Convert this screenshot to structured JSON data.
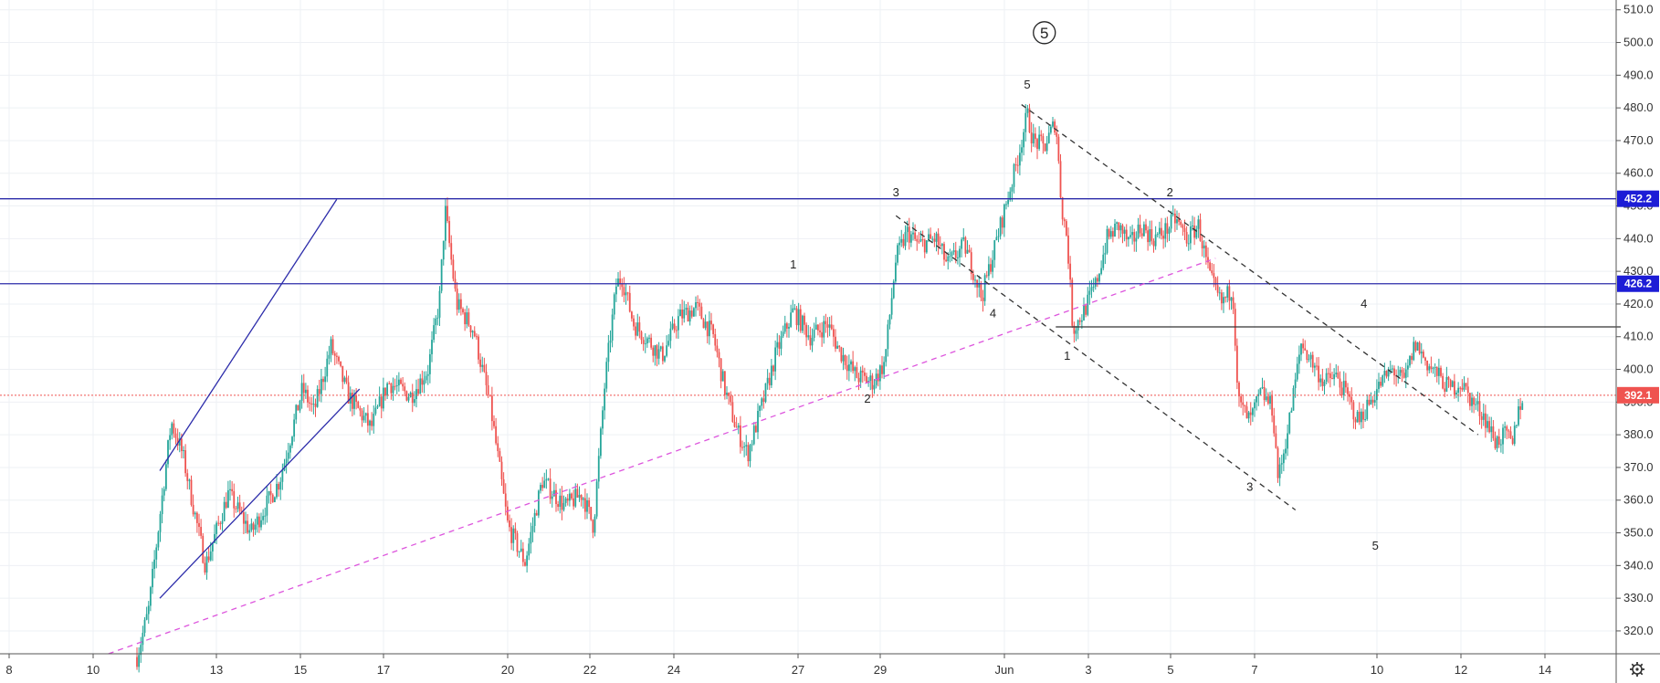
{
  "chart_data": {
    "type": "candlestick",
    "title": "",
    "xlabel": "",
    "ylabel": "",
    "ylim": [
      313,
      513
    ],
    "grid": true,
    "x_tick_labels": [
      "8",
      "10",
      "13",
      "15",
      "17",
      "20",
      "22",
      "24",
      "27",
      "29",
      "Jun",
      "3",
      "5",
      "7",
      "10",
      "12",
      "14"
    ],
    "y_tick_labels": [
      "320.0",
      "330.0",
      "340.0",
      "350.0",
      "360.0",
      "370.0",
      "380.0",
      "390.0",
      "400.0",
      "410.0",
      "420.0",
      "430.0",
      "440.0",
      "450.0",
      "460.0",
      "470.0",
      "480.0",
      "490.0",
      "500.0",
      "510.0"
    ],
    "y_ticks": [
      320,
      330,
      340,
      350,
      360,
      370,
      380,
      390,
      400,
      410,
      420,
      430,
      440,
      450,
      460,
      470,
      480,
      490,
      500,
      510
    ],
    "price_path": [
      [
        0,
        312
      ],
      [
        2,
        326
      ],
      [
        6,
        384
      ],
      [
        8,
        374
      ],
      [
        12,
        340
      ],
      [
        16,
        362
      ],
      [
        20,
        350
      ],
      [
        25,
        366
      ],
      [
        29,
        394
      ],
      [
        31,
        387
      ],
      [
        34,
        407
      ],
      [
        37,
        392
      ],
      [
        41,
        382
      ],
      [
        44,
        396
      ],
      [
        48,
        392
      ],
      [
        51,
        400
      ],
      [
        53,
        421
      ],
      [
        54,
        449
      ],
      [
        56,
        420
      ],
      [
        59,
        412
      ],
      [
        62,
        388
      ],
      [
        65,
        352
      ],
      [
        68,
        341
      ],
      [
        71,
        366
      ],
      [
        75,
        358
      ],
      [
        78,
        362
      ],
      [
        80,
        352
      ],
      [
        82,
        396
      ],
      [
        84,
        426
      ],
      [
        85,
        428
      ],
      [
        87,
        414
      ],
      [
        89,
        410
      ],
      [
        92,
        404
      ],
      [
        95,
        416
      ],
      [
        98,
        419
      ],
      [
        101,
        410
      ],
      [
        103,
        394
      ],
      [
        105,
        382
      ],
      [
        107,
        374
      ],
      [
        110,
        392
      ],
      [
        112,
        405
      ],
      [
        115,
        418
      ],
      [
        118,
        410
      ],
      [
        121,
        414
      ],
      [
        123,
        406
      ],
      [
        126,
        398
      ],
      [
        129,
        396
      ],
      [
        131,
        402
      ],
      [
        133,
        434
      ],
      [
        135,
        442
      ],
      [
        137,
        438
      ],
      [
        140,
        440
      ],
      [
        142,
        432
      ],
      [
        145,
        438
      ],
      [
        147,
        428
      ],
      [
        148,
        422
      ],
      [
        151,
        442
      ],
      [
        154,
        462
      ],
      [
        156,
        478
      ],
      [
        157,
        470
      ],
      [
        159,
        468
      ],
      [
        161,
        476
      ],
      [
        162,
        450
      ],
      [
        163,
        440
      ],
      [
        164,
        412
      ],
      [
        166,
        418
      ],
      [
        168,
        426
      ],
      [
        170,
        440
      ],
      [
        172,
        444
      ],
      [
        174,
        438
      ],
      [
        176,
        444
      ],
      [
        178,
        440
      ],
      [
        180,
        442
      ],
      [
        182,
        446
      ],
      [
        184,
        440
      ],
      [
        186,
        444
      ],
      [
        188,
        428
      ],
      [
        190,
        420
      ],
      [
        192,
        425
      ],
      [
        193,
        390
      ],
      [
        195,
        384
      ],
      [
        197,
        393
      ],
      [
        199,
        388
      ],
      [
        200,
        366
      ],
      [
        202,
        385
      ],
      [
        204,
        408
      ],
      [
        206,
        402
      ],
      [
        208,
        396
      ],
      [
        210,
        398
      ],
      [
        212,
        392
      ],
      [
        214,
        384
      ],
      [
        216,
        390
      ],
      [
        218,
        396
      ],
      [
        220,
        400
      ],
      [
        222,
        396
      ],
      [
        224,
        408
      ],
      [
        226,
        402
      ],
      [
        228,
        398
      ],
      [
        230,
        394
      ],
      [
        232,
        396
      ],
      [
        234,
        390
      ],
      [
        236,
        386
      ],
      [
        238,
        378
      ],
      [
        240,
        380
      ],
      [
        241,
        376
      ],
      [
        242,
        388
      ],
      [
        243,
        392
      ]
    ],
    "candle_x_range": [
      0,
      243
    ],
    "horizontal_lines": [
      {
        "name": "resistance-1",
        "value": 452.2,
        "label": "452.2",
        "color": "#2c2caa"
      },
      {
        "name": "resistance-2",
        "value": 426.2,
        "label": "426.2",
        "color": "#2c2caa"
      },
      {
        "name": "last-price",
        "value": 392.1,
        "label": "392.1",
        "color": "#ef5350",
        "dotted": true
      }
    ],
    "trend_lines": [
      {
        "name": "channel-upper",
        "x1": 4,
        "y1": 369,
        "x2": 35,
        "y2": 452,
        "color": "#2c2caa",
        "dash": false
      },
      {
        "name": "channel-lower",
        "x1": 4,
        "y1": 330,
        "x2": 39,
        "y2": 394,
        "color": "#2c2caa",
        "dash": false
      },
      {
        "name": "support-diagonal",
        "x1": -5,
        "y1": 313,
        "x2": 189,
        "y2": 434,
        "color": "#dd55dd",
        "dash": true
      },
      {
        "name": "wedge-upper",
        "x1": 155,
        "y1": 481,
        "x2": 235,
        "y2": 380,
        "color": "#333333",
        "dash": true
      },
      {
        "name": "wedge-lower",
        "x1": 133,
        "y1": 447,
        "x2": 203,
        "y2": 357,
        "color": "#333333",
        "dash": true
      },
      {
        "name": "level-413",
        "x1": 161,
        "y1": 413,
        "x2": 260,
        "y2": 413,
        "color": "#333333",
        "dash": false
      }
    ],
    "wave_labels": [
      {
        "text": "1",
        "x": 115,
        "y": 432
      },
      {
        "text": "2",
        "x": 128,
        "y": 391
      },
      {
        "text": "3",
        "x": 133,
        "y": 454
      },
      {
        "text": "4",
        "x": 150,
        "y": 417
      },
      {
        "text": "5",
        "x": 156,
        "y": 487
      },
      {
        "text": "1",
        "x": 163,
        "y": 404
      },
      {
        "text": "2",
        "x": 181,
        "y": 454
      },
      {
        "text": "3",
        "x": 195,
        "y": 364
      },
      {
        "text": "4",
        "x": 215,
        "y": 420
      },
      {
        "text": "5",
        "x": 217,
        "y": 346
      }
    ],
    "circled_label": {
      "text": "5",
      "x": 159,
      "y": 503
    },
    "up_color": "#26a69a",
    "down_color": "#ef5350",
    "grid_color": "#eef0f4"
  },
  "toolbar": {
    "settings_icon": "gear-icon"
  }
}
